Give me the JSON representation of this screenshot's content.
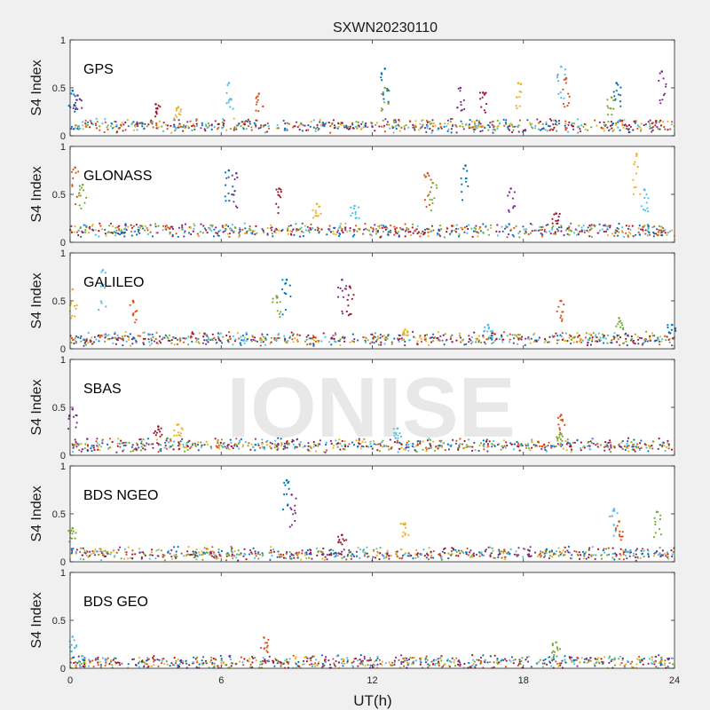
{
  "figure": {
    "title": "SXWN20230110",
    "xlabel": "UT(h)",
    "watermark": "IONISE",
    "background": "#f0f0f0",
    "axes_background": "#ffffff",
    "axis_color": "#262626",
    "panel_labels": [
      "GPS",
      "GLONASS",
      "GALILEO",
      "SBAS",
      "BDS NGEO",
      "BDS GEO"
    ],
    "series_colors": [
      "#0072BD",
      "#D95319",
      "#EDB120",
      "#7E2F8E",
      "#77AC30",
      "#4DBEEE",
      "#A2142F"
    ]
  },
  "chart_data": [
    {
      "type": "scatter",
      "panel": "GPS",
      "ylabel": "S4 Index",
      "xlim": [
        0,
        24
      ],
      "ylim": [
        0,
        1
      ],
      "xticks": [
        0,
        6,
        12,
        18,
        24
      ],
      "yticks": [
        0,
        0.5,
        1
      ],
      "xticklabels": [
        "0",
        "6",
        "12",
        "18",
        "24"
      ],
      "yticklabels": [
        "0",
        "0.5",
        "1"
      ],
      "baseline": 0.1,
      "spikes": [
        [
          0.1,
          0.47
        ],
        [
          0.3,
          0.42
        ],
        [
          3.4,
          0.33
        ],
        [
          4.3,
          0.3
        ],
        [
          6.3,
          0.55
        ],
        [
          7.5,
          0.44
        ],
        [
          12.5,
          0.5
        ],
        [
          12.5,
          0.7
        ],
        [
          15.5,
          0.5
        ],
        [
          16.4,
          0.45
        ],
        [
          17.8,
          0.55
        ],
        [
          19.5,
          0.72
        ],
        [
          19.7,
          0.6
        ],
        [
          21.5,
          0.4
        ],
        [
          21.7,
          0.55
        ],
        [
          23.5,
          0.67
        ]
      ]
    },
    {
      "type": "scatter",
      "panel": "GLONASS",
      "ylabel": "S4 Index",
      "xlim": [
        0,
        24
      ],
      "ylim": [
        0,
        1
      ],
      "xticks": [
        0,
        6,
        12,
        18,
        24
      ],
      "yticks": [
        0,
        0.5,
        1
      ],
      "xticklabels": [
        "0",
        "6",
        "12",
        "18",
        "24"
      ],
      "yticklabels": [
        "0",
        "0.5",
        "1"
      ],
      "baseline": 0.12,
      "spikes": [
        [
          0.2,
          0.78
        ],
        [
          0.5,
          0.6
        ],
        [
          6.3,
          0.75
        ],
        [
          6.6,
          0.72
        ],
        [
          8.3,
          0.56
        ],
        [
          9.8,
          0.4
        ],
        [
          11.3,
          0.38
        ],
        [
          14.2,
          0.72
        ],
        [
          14.4,
          0.62
        ],
        [
          15.7,
          0.8
        ],
        [
          17.5,
          0.56
        ],
        [
          19.3,
          0.3
        ],
        [
          22.5,
          0.92
        ],
        [
          22.8,
          0.55
        ]
      ]
    },
    {
      "type": "scatter",
      "panel": "GALILEO",
      "ylabel": "S4 Index",
      "xlim": [
        0,
        24
      ],
      "ylim": [
        0,
        1
      ],
      "xticks": [
        0,
        6,
        12,
        18,
        24
      ],
      "yticks": [
        0,
        0.5,
        1
      ],
      "xticklabels": [
        "0",
        "6",
        "12",
        "18",
        "24"
      ],
      "yticklabels": [
        "0",
        "0.5",
        "1"
      ],
      "baseline": 0.1,
      "spikes": [
        [
          0.1,
          0.62
        ],
        [
          1.3,
          0.82
        ],
        [
          2.5,
          0.5
        ],
        [
          8.2,
          0.55
        ],
        [
          8.6,
          0.72
        ],
        [
          10.8,
          0.72
        ],
        [
          11.1,
          0.65
        ],
        [
          13.3,
          0.2
        ],
        [
          16.6,
          0.25
        ],
        [
          19.5,
          0.5
        ],
        [
          21.8,
          0.32
        ],
        [
          23.9,
          0.25
        ]
      ]
    },
    {
      "type": "scatter",
      "panel": "SBAS",
      "ylabel": "S4 Index",
      "xlim": [
        0,
        24
      ],
      "ylim": [
        0,
        1
      ],
      "xticks": [
        0,
        6,
        12,
        18,
        24
      ],
      "yticks": [
        0,
        0.5,
        1
      ],
      "xticklabels": [
        "0",
        "6",
        "12",
        "18",
        "24"
      ],
      "yticklabels": [
        "0",
        "0.5",
        "1"
      ],
      "baseline": 0.1,
      "spikes": [
        [
          0.1,
          0.48
        ],
        [
          3.5,
          0.3
        ],
        [
          4.3,
          0.32
        ],
        [
          13,
          0.28
        ],
        [
          19.5,
          0.42
        ],
        [
          19.5,
          0.22
        ]
      ]
    },
    {
      "type": "scatter",
      "panel": "BDS NGEO",
      "ylabel": "S4 Index",
      "xlim": [
        0,
        24
      ],
      "ylim": [
        0,
        1
      ],
      "xticks": [
        0,
        6,
        12,
        18,
        24
      ],
      "yticks": [
        0,
        0.5,
        1
      ],
      "xticklabels": [
        "0",
        "6",
        "12",
        "18",
        "24"
      ],
      "yticklabels": [
        "0",
        "0.5",
        "1"
      ],
      "baseline": 0.08,
      "spikes": [
        [
          0.1,
          0.35
        ],
        [
          8.6,
          0.85
        ],
        [
          8.8,
          0.7
        ],
        [
          10.8,
          0.28
        ],
        [
          13.3,
          0.4
        ],
        [
          21.6,
          0.55
        ],
        [
          21.8,
          0.42
        ],
        [
          23.3,
          0.52
        ]
      ]
    },
    {
      "type": "scatter",
      "panel": "BDS GEO",
      "ylabel": "S4 Index",
      "xlim": [
        0,
        24
      ],
      "ylim": [
        0,
        1
      ],
      "xticks": [
        0,
        6,
        12,
        18,
        24
      ],
      "yticks": [
        0,
        0.5,
        1
      ],
      "xticklabels": [
        "0",
        "6",
        "12",
        "18",
        "24"
      ],
      "yticklabels": [
        "0",
        "0.5",
        "1"
      ],
      "baseline": 0.06,
      "spikes": [
        [
          0.1,
          0.33
        ],
        [
          7.7,
          0.32
        ],
        [
          19.3,
          0.27
        ]
      ]
    }
  ]
}
